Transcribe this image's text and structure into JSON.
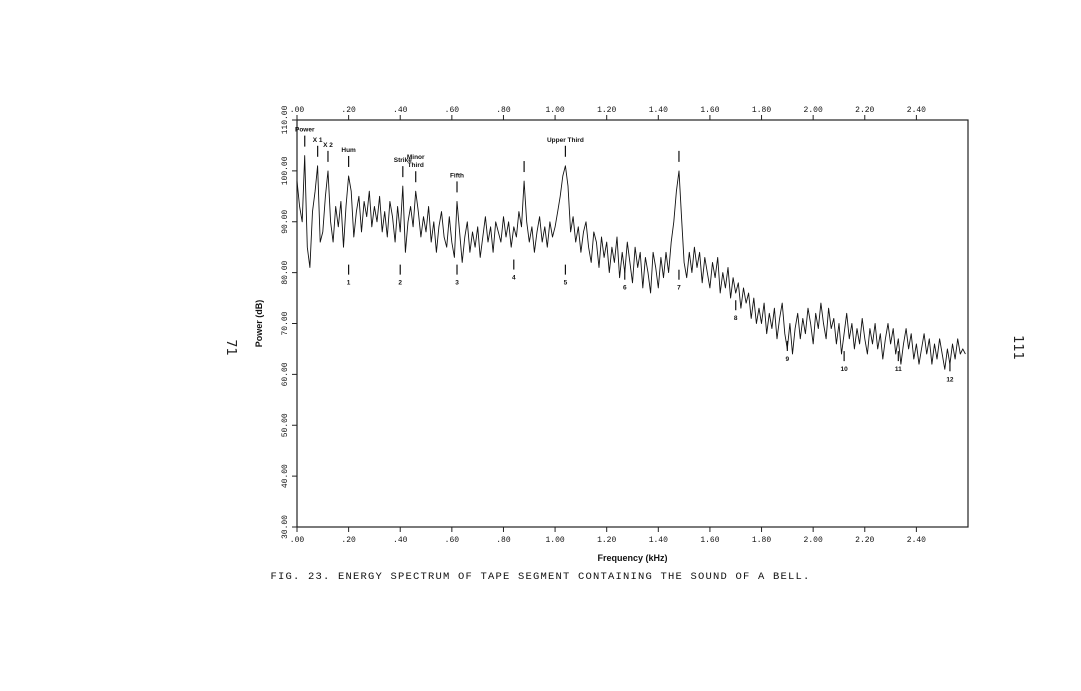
{
  "page": {
    "left_number": "71",
    "right_number": "111"
  },
  "caption": "FIG. 23.  ENERGY SPECTRUM OF TAPE SEGMENT CONTAINING THE SOUND OF A BELL.",
  "chart_data": {
    "type": "line",
    "title": "",
    "xlabel": "Frequency (kHz)",
    "ylabel": "Power (dB)",
    "xlim": [
      0.0,
      2.6
    ],
    "ylim": [
      30,
      110
    ],
    "grid": false,
    "x_ticks": [
      ".00",
      ".20",
      ".40",
      ".60",
      ".80",
      "1.00",
      "1.20",
      "1.40",
      "1.60",
      "1.80",
      "2.00",
      "2.20",
      "2.40"
    ],
    "x_tick_values": [
      0,
      0.2,
      0.4,
      0.6,
      0.8,
      1.0,
      1.2,
      1.4,
      1.6,
      1.8,
      2.0,
      2.2,
      2.4
    ],
    "y_ticks": [
      "30.00",
      "40.00",
      "50.00",
      "60.00",
      "70.00",
      "80.00",
      "90.00",
      "100.00",
      "110.00"
    ],
    "y_tick_values": [
      30,
      40,
      50,
      60,
      70,
      80,
      90,
      100,
      110
    ],
    "peaks_named": [
      {
        "label": "Power",
        "x": 0.03,
        "y": 103
      },
      {
        "label": "X 1",
        "x": 0.08,
        "y": 101
      },
      {
        "label": "X 2",
        "x": 0.12,
        "y": 100
      },
      {
        "label": "Hum",
        "x": 0.2,
        "y": 99
      },
      {
        "label": "Strike",
        "x": 0.41,
        "y": 97
      },
      {
        "label": "Minor\nThird",
        "x": 0.46,
        "y": 96
      },
      {
        "label": "Fifth",
        "x": 0.62,
        "y": 94
      },
      {
        "label": "",
        "x": 0.88,
        "y": 98
      },
      {
        "label": "Upper Third",
        "x": 1.04,
        "y": 101
      },
      {
        "label": "",
        "x": 1.48,
        "y": 100
      }
    ],
    "peaks_numbered": [
      {
        "label": "1",
        "x": 0.2,
        "y": 80
      },
      {
        "label": "2",
        "x": 0.4,
        "y": 80
      },
      {
        "label": "3",
        "x": 0.62,
        "y": 80
      },
      {
        "label": "4",
        "x": 0.84,
        "y": 81
      },
      {
        "label": "5",
        "x": 1.04,
        "y": 80
      },
      {
        "label": "6",
        "x": 1.27,
        "y": 79
      },
      {
        "label": "7",
        "x": 1.48,
        "y": 79
      },
      {
        "label": "8",
        "x": 1.7,
        "y": 73
      },
      {
        "label": "9",
        "x": 1.9,
        "y": 65
      },
      {
        "label": "10",
        "x": 2.12,
        "y": 63
      },
      {
        "label": "11",
        "x": 2.33,
        "y": 63
      },
      {
        "label": "12",
        "x": 2.53,
        "y": 61
      }
    ],
    "series": [
      {
        "points": [
          [
            0.0,
            98
          ],
          [
            0.01,
            93
          ],
          [
            0.02,
            90
          ],
          [
            0.03,
            103
          ],
          [
            0.04,
            85
          ],
          [
            0.05,
            81
          ],
          [
            0.06,
            92
          ],
          [
            0.07,
            96
          ],
          [
            0.08,
            101
          ],
          [
            0.09,
            86
          ],
          [
            0.1,
            88
          ],
          [
            0.11,
            95
          ],
          [
            0.12,
            100
          ],
          [
            0.13,
            90
          ],
          [
            0.14,
            86
          ],
          [
            0.15,
            93
          ],
          [
            0.16,
            89
          ],
          [
            0.17,
            94
          ],
          [
            0.18,
            85
          ],
          [
            0.19,
            93
          ],
          [
            0.2,
            99
          ],
          [
            0.21,
            96
          ],
          [
            0.22,
            87
          ],
          [
            0.23,
            92
          ],
          [
            0.24,
            95
          ],
          [
            0.25,
            88
          ],
          [
            0.26,
            94
          ],
          [
            0.27,
            91
          ],
          [
            0.28,
            96
          ],
          [
            0.29,
            89
          ],
          [
            0.3,
            93
          ],
          [
            0.31,
            90
          ],
          [
            0.32,
            95
          ],
          [
            0.33,
            88
          ],
          [
            0.34,
            92
          ],
          [
            0.35,
            87
          ],
          [
            0.36,
            94
          ],
          [
            0.37,
            91
          ],
          [
            0.38,
            86
          ],
          [
            0.39,
            93
          ],
          [
            0.4,
            88
          ],
          [
            0.41,
            97
          ],
          [
            0.42,
            84
          ],
          [
            0.43,
            90
          ],
          [
            0.44,
            93
          ],
          [
            0.45,
            89
          ],
          [
            0.46,
            96
          ],
          [
            0.47,
            92
          ],
          [
            0.48,
            87
          ],
          [
            0.49,
            91
          ],
          [
            0.5,
            88
          ],
          [
            0.51,
            93
          ],
          [
            0.52,
            86
          ],
          [
            0.53,
            90
          ],
          [
            0.54,
            84
          ],
          [
            0.55,
            89
          ],
          [
            0.56,
            92
          ],
          [
            0.57,
            87
          ],
          [
            0.58,
            85
          ],
          [
            0.59,
            91
          ],
          [
            0.6,
            86
          ],
          [
            0.61,
            83
          ],
          [
            0.62,
            94
          ],
          [
            0.63,
            88
          ],
          [
            0.64,
            82
          ],
          [
            0.65,
            87
          ],
          [
            0.66,
            90
          ],
          [
            0.67,
            84
          ],
          [
            0.68,
            88
          ],
          [
            0.69,
            85
          ],
          [
            0.7,
            89
          ],
          [
            0.71,
            83
          ],
          [
            0.72,
            87
          ],
          [
            0.73,
            91
          ],
          [
            0.74,
            86
          ],
          [
            0.75,
            89
          ],
          [
            0.76,
            84
          ],
          [
            0.77,
            90
          ],
          [
            0.78,
            88
          ],
          [
            0.79,
            86
          ],
          [
            0.8,
            91
          ],
          [
            0.81,
            87
          ],
          [
            0.82,
            90
          ],
          [
            0.83,
            85
          ],
          [
            0.84,
            89
          ],
          [
            0.85,
            87
          ],
          [
            0.86,
            92
          ],
          [
            0.87,
            89
          ],
          [
            0.88,
            98
          ],
          [
            0.89,
            90
          ],
          [
            0.9,
            86
          ],
          [
            0.91,
            89
          ],
          [
            0.92,
            84
          ],
          [
            0.93,
            88
          ],
          [
            0.94,
            91
          ],
          [
            0.95,
            86
          ],
          [
            0.96,
            89
          ],
          [
            0.97,
            85
          ],
          [
            0.98,
            90
          ],
          [
            0.99,
            87
          ],
          [
            1.0,
            89
          ],
          [
            1.01,
            92
          ],
          [
            1.02,
            95
          ],
          [
            1.03,
            99
          ],
          [
            1.04,
            101
          ],
          [
            1.05,
            97
          ],
          [
            1.06,
            88
          ],
          [
            1.07,
            91
          ],
          [
            1.08,
            86
          ],
          [
            1.09,
            89
          ],
          [
            1.1,
            84
          ],
          [
            1.11,
            88
          ],
          [
            1.12,
            90
          ],
          [
            1.13,
            85
          ],
          [
            1.14,
            82
          ],
          [
            1.15,
            88
          ],
          [
            1.16,
            86
          ],
          [
            1.17,
            81
          ],
          [
            1.18,
            87
          ],
          [
            1.19,
            83
          ],
          [
            1.2,
            86
          ],
          [
            1.21,
            80
          ],
          [
            1.22,
            85
          ],
          [
            1.23,
            82
          ],
          [
            1.24,
            87
          ],
          [
            1.25,
            79
          ],
          [
            1.26,
            84
          ],
          [
            1.27,
            80
          ],
          [
            1.28,
            86
          ],
          [
            1.29,
            82
          ],
          [
            1.3,
            78
          ],
          [
            1.31,
            85
          ],
          [
            1.32,
            81
          ],
          [
            1.33,
            84
          ],
          [
            1.34,
            77
          ],
          [
            1.35,
            83
          ],
          [
            1.36,
            80
          ],
          [
            1.37,
            76
          ],
          [
            1.38,
            84
          ],
          [
            1.39,
            81
          ],
          [
            1.4,
            77
          ],
          [
            1.41,
            83
          ],
          [
            1.42,
            79
          ],
          [
            1.43,
            84
          ],
          [
            1.44,
            80
          ],
          [
            1.45,
            86
          ],
          [
            1.46,
            90
          ],
          [
            1.47,
            96
          ],
          [
            1.48,
            100
          ],
          [
            1.49,
            91
          ],
          [
            1.5,
            82
          ],
          [
            1.51,
            79
          ],
          [
            1.52,
            84
          ],
          [
            1.53,
            80
          ],
          [
            1.54,
            85
          ],
          [
            1.55,
            81
          ],
          [
            1.56,
            84
          ],
          [
            1.57,
            78
          ],
          [
            1.58,
            83
          ],
          [
            1.59,
            80
          ],
          [
            1.6,
            77
          ],
          [
            1.61,
            82
          ],
          [
            1.62,
            79
          ],
          [
            1.63,
            83
          ],
          [
            1.64,
            76
          ],
          [
            1.65,
            80
          ],
          [
            1.66,
            77
          ],
          [
            1.67,
            81
          ],
          [
            1.68,
            75
          ],
          [
            1.69,
            79
          ],
          [
            1.7,
            76
          ],
          [
            1.71,
            78
          ],
          [
            1.72,
            73
          ],
          [
            1.73,
            77
          ],
          [
            1.74,
            74
          ],
          [
            1.75,
            76
          ],
          [
            1.76,
            71
          ],
          [
            1.77,
            75
          ],
          [
            1.78,
            70
          ],
          [
            1.79,
            73
          ],
          [
            1.8,
            70
          ],
          [
            1.81,
            74
          ],
          [
            1.82,
            68
          ],
          [
            1.83,
            72
          ],
          [
            1.84,
            69
          ],
          [
            1.85,
            73
          ],
          [
            1.86,
            67
          ],
          [
            1.87,
            71
          ],
          [
            1.88,
            74
          ],
          [
            1.89,
            68
          ],
          [
            1.9,
            65
          ],
          [
            1.91,
            70
          ],
          [
            1.92,
            64
          ],
          [
            1.93,
            69
          ],
          [
            1.94,
            72
          ],
          [
            1.95,
            67
          ],
          [
            1.96,
            71
          ],
          [
            1.97,
            68
          ],
          [
            1.98,
            73
          ],
          [
            1.99,
            70
          ],
          [
            2.0,
            66
          ],
          [
            2.01,
            72
          ],
          [
            2.02,
            69
          ],
          [
            2.03,
            74
          ],
          [
            2.04,
            70
          ],
          [
            2.05,
            67
          ],
          [
            2.06,
            73
          ],
          [
            2.07,
            69
          ],
          [
            2.08,
            71
          ],
          [
            2.09,
            66
          ],
          [
            2.1,
            70
          ],
          [
            2.11,
            64
          ],
          [
            2.12,
            68
          ],
          [
            2.13,
            72
          ],
          [
            2.14,
            67
          ],
          [
            2.15,
            70
          ],
          [
            2.16,
            65
          ],
          [
            2.17,
            69
          ],
          [
            2.18,
            66
          ],
          [
            2.19,
            71
          ],
          [
            2.2,
            67
          ],
          [
            2.21,
            64
          ],
          [
            2.22,
            69
          ],
          [
            2.23,
            66
          ],
          [
            2.24,
            70
          ],
          [
            2.25,
            65
          ],
          [
            2.26,
            68
          ],
          [
            2.27,
            63
          ],
          [
            2.28,
            67
          ],
          [
            2.29,
            70
          ],
          [
            2.3,
            66
          ],
          [
            2.31,
            69
          ],
          [
            2.32,
            64
          ],
          [
            2.33,
            67
          ],
          [
            2.34,
            62
          ],
          [
            2.35,
            66
          ],
          [
            2.36,
            69
          ],
          [
            2.37,
            65
          ],
          [
            2.38,
            68
          ],
          [
            2.39,
            63
          ],
          [
            2.4,
            66
          ],
          [
            2.41,
            62
          ],
          [
            2.42,
            65
          ],
          [
            2.43,
            68
          ],
          [
            2.44,
            64
          ],
          [
            2.45,
            67
          ],
          [
            2.46,
            62
          ],
          [
            2.47,
            66
          ],
          [
            2.48,
            63
          ],
          [
            2.49,
            67
          ],
          [
            2.5,
            64
          ],
          [
            2.51,
            61
          ],
          [
            2.52,
            65
          ],
          [
            2.53,
            62
          ],
          [
            2.54,
            66
          ],
          [
            2.55,
            63
          ],
          [
            2.56,
            67
          ],
          [
            2.57,
            64
          ],
          [
            2.58,
            65
          ],
          [
            2.59,
            64
          ]
        ]
      }
    ]
  }
}
